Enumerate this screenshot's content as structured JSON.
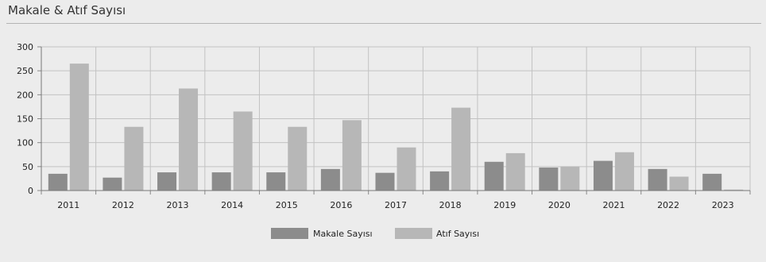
{
  "title": "Makale & Atıf Sayısı",
  "chart_data": {
    "type": "bar",
    "categories": [
      "2011",
      "2012",
      "2013",
      "2014",
      "2015",
      "2016",
      "2017",
      "2018",
      "2019",
      "2020",
      "2021",
      "2022",
      "2023"
    ],
    "series": [
      {
        "name": "Makale Sayısı",
        "color": "#8c8c8c",
        "values": [
          35,
          27,
          38,
          38,
          38,
          45,
          37,
          40,
          60,
          48,
          62,
          45,
          35
        ]
      },
      {
        "name": "Atıf Sayısı",
        "color": "#b7b7b7",
        "values": [
          265,
          133,
          213,
          165,
          133,
          147,
          90,
          173,
          78,
          50,
          80,
          29,
          2
        ]
      }
    ],
    "ylim": [
      0,
      300
    ],
    "yticks": [
      0,
      50,
      100,
      150,
      200,
      250,
      300
    ],
    "ytick_labels": [
      "0",
      "50",
      "100",
      "150",
      "200",
      "250",
      "300"
    ],
    "grid": true,
    "legend_position": "bottom-center",
    "xlabel": "",
    "ylabel": ""
  }
}
